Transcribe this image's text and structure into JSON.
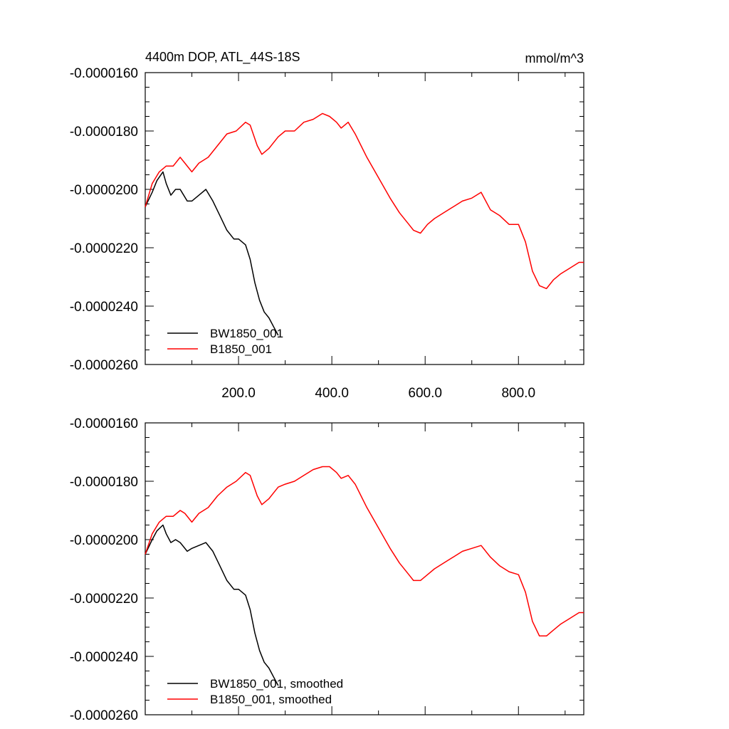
{
  "title": "4400m DOP, ATL_44S-18S",
  "units": "mmol/m^3",
  "y_tick_labels": [
    "-0.0000160",
    "-0.0000180",
    "-0.0000200",
    "-0.0000220",
    "-0.0000240",
    "-0.0000260"
  ],
  "x_tick_labels": [
    "200.0",
    "400.0",
    "600.0",
    "800.0"
  ],
  "colors": {
    "BW1850_001": "#000000",
    "B1850_001": "#ff0000"
  },
  "chart_data": [
    {
      "type": "line",
      "title": "4400m DOP, ATL_44S-18S",
      "units": "mmol/m^3",
      "xlim": [
        0,
        940
      ],
      "ylim": [
        -2.6e-05,
        -1.6e-05
      ],
      "x_ticks": [
        200,
        400,
        600,
        800
      ],
      "y_ticks": [
        -1.6e-05,
        -1.8e-05,
        -2e-05,
        -2.2e-05,
        -2.4e-05,
        -2.6e-05
      ],
      "legend_placement": "bottom-left",
      "grid": false,
      "series": [
        {
          "name": "BW1850_001",
          "color": "#000000",
          "x": [
            0,
            15,
            25,
            38,
            45,
            55,
            65,
            75,
            90,
            100,
            115,
            130,
            145,
            160,
            175,
            190,
            200,
            215,
            225,
            235,
            245,
            255,
            265,
            275,
            285
          ],
          "y": [
            -2.06e-05,
            -2.01e-05,
            -1.97e-05,
            -1.94e-05,
            -1.98e-05,
            -2.02e-05,
            -2e-05,
            -2e-05,
            -2.04e-05,
            -2.04e-05,
            -2.02e-05,
            -2e-05,
            -2.04e-05,
            -2.09e-05,
            -2.14e-05,
            -2.17e-05,
            -2.17e-05,
            -2.19e-05,
            -2.24e-05,
            -2.32e-05,
            -2.38e-05,
            -2.42e-05,
            -2.44e-05,
            -2.47e-05,
            -2.5e-05
          ]
        },
        {
          "name": "B1850_001",
          "color": "#ff0000",
          "x": [
            0,
            15,
            30,
            45,
            60,
            75,
            85,
            100,
            115,
            135,
            155,
            175,
            195,
            215,
            225,
            240,
            250,
            265,
            285,
            300,
            320,
            340,
            360,
            380,
            395,
            410,
            420,
            435,
            450,
            475,
            500,
            525,
            545,
            565,
            575,
            590,
            605,
            620,
            640,
            660,
            680,
            700,
            720,
            740,
            760,
            780,
            800,
            815,
            830,
            845,
            860,
            875,
            890,
            910,
            930,
            940
          ],
          "y": [
            -2.06e-05,
            -1.98e-05,
            -1.94e-05,
            -1.92e-05,
            -1.92e-05,
            -1.89e-05,
            -1.91e-05,
            -1.94e-05,
            -1.91e-05,
            -1.89e-05,
            -1.85e-05,
            -1.81e-05,
            -1.8e-05,
            -1.77e-05,
            -1.78e-05,
            -1.85e-05,
            -1.88e-05,
            -1.86e-05,
            -1.82e-05,
            -1.8e-05,
            -1.8e-05,
            -1.77e-05,
            -1.76e-05,
            -1.74e-05,
            -1.75e-05,
            -1.77e-05,
            -1.79e-05,
            -1.77e-05,
            -1.81e-05,
            -1.89e-05,
            -1.96e-05,
            -2.03e-05,
            -2.08e-05,
            -2.12e-05,
            -2.14e-05,
            -2.15e-05,
            -2.12e-05,
            -2.1e-05,
            -2.08e-05,
            -2.06e-05,
            -2.04e-05,
            -2.03e-05,
            -2.01e-05,
            -2.07e-05,
            -2.09e-05,
            -2.12e-05,
            -2.12e-05,
            -2.18e-05,
            -2.28e-05,
            -2.33e-05,
            -2.34e-05,
            -2.31e-05,
            -2.29e-05,
            -2.27e-05,
            -2.25e-05,
            -2.25e-05
          ]
        }
      ]
    },
    {
      "type": "line",
      "xlim": [
        0,
        940
      ],
      "ylim": [
        -2.6e-05,
        -1.6e-05
      ],
      "y_ticks": [
        -1.6e-05,
        -1.8e-05,
        -2e-05,
        -2.2e-05,
        -2.4e-05,
        -2.6e-05
      ],
      "legend_placement": "bottom-left",
      "grid": false,
      "series": [
        {
          "name": "BW1850_001, smoothed",
          "color": "#000000",
          "x": [
            0,
            15,
            25,
            38,
            45,
            55,
            65,
            75,
            90,
            100,
            115,
            130,
            145,
            160,
            175,
            190,
            200,
            215,
            225,
            235,
            245,
            255,
            265,
            275,
            285
          ],
          "y": [
            -2.05e-05,
            -2e-05,
            -1.97e-05,
            -1.95e-05,
            -1.98e-05,
            -2.01e-05,
            -2e-05,
            -2.01e-05,
            -2.04e-05,
            -2.03e-05,
            -2.02e-05,
            -2.01e-05,
            -2.04e-05,
            -2.09e-05,
            -2.14e-05,
            -2.17e-05,
            -2.17e-05,
            -2.19e-05,
            -2.24e-05,
            -2.32e-05,
            -2.38e-05,
            -2.42e-05,
            -2.44e-05,
            -2.47e-05,
            -2.5e-05
          ]
        },
        {
          "name": "B1850_001, smoothed",
          "color": "#ff0000",
          "x": [
            0,
            15,
            30,
            45,
            60,
            75,
            85,
            100,
            115,
            135,
            155,
            175,
            195,
            215,
            225,
            240,
            250,
            265,
            285,
            300,
            320,
            340,
            360,
            380,
            395,
            410,
            420,
            435,
            450,
            475,
            500,
            525,
            545,
            565,
            575,
            590,
            605,
            620,
            640,
            660,
            680,
            700,
            720,
            740,
            760,
            780,
            800,
            815,
            830,
            845,
            860,
            875,
            890,
            910,
            930,
            940
          ],
          "y": [
            -2.05e-05,
            -1.98e-05,
            -1.94e-05,
            -1.92e-05,
            -1.92e-05,
            -1.9e-05,
            -1.91e-05,
            -1.94e-05,
            -1.91e-05,
            -1.89e-05,
            -1.85e-05,
            -1.82e-05,
            -1.8e-05,
            -1.77e-05,
            -1.78e-05,
            -1.85e-05,
            -1.88e-05,
            -1.86e-05,
            -1.82e-05,
            -1.81e-05,
            -1.8e-05,
            -1.78e-05,
            -1.76e-05,
            -1.75e-05,
            -1.75e-05,
            -1.77e-05,
            -1.79e-05,
            -1.78e-05,
            -1.81e-05,
            -1.89e-05,
            -1.96e-05,
            -2.03e-05,
            -2.08e-05,
            -2.12e-05,
            -2.14e-05,
            -2.14e-05,
            -2.12e-05,
            -2.1e-05,
            -2.08e-05,
            -2.06e-05,
            -2.04e-05,
            -2.03e-05,
            -2.02e-05,
            -2.06e-05,
            -2.09e-05,
            -2.11e-05,
            -2.12e-05,
            -2.18e-05,
            -2.28e-05,
            -2.33e-05,
            -2.33e-05,
            -2.31e-05,
            -2.29e-05,
            -2.27e-05,
            -2.25e-05,
            -2.25e-05
          ]
        }
      ]
    }
  ]
}
